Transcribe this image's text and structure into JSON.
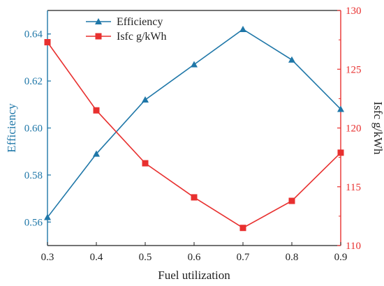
{
  "chart_data": {
    "type": "line",
    "title": "",
    "x": [
      0.3,
      0.4,
      0.5,
      0.6,
      0.7,
      0.8,
      0.9
    ],
    "xlabel": "Fuel utilization",
    "xlim": [
      0.3,
      0.9
    ],
    "xticks": [
      "0.3",
      "0.4",
      "0.5",
      "0.6",
      "0.7",
      "0.8",
      "0.9"
    ],
    "y_left": {
      "label": "Efficiency",
      "lim": [
        0.55,
        0.65
      ],
      "ticks": [
        "0.56",
        "0.58",
        "0.60",
        "0.62",
        "0.64"
      ],
      "color": "#1f77a8"
    },
    "y_right": {
      "label": "Isfc g/kWh",
      "lim": [
        110,
        130
      ],
      "ticks": [
        "110",
        "115",
        "120",
        "125",
        "130"
      ],
      "color": "#e8302f"
    },
    "series": [
      {
        "name": "Efficiency",
        "axis": "left",
        "marker": "triangle",
        "color": "#1f77a8",
        "values": [
          0.562,
          0.589,
          0.612,
          0.627,
          0.642,
          0.629,
          0.608
        ]
      },
      {
        "name": "Isfc g/kWh",
        "axis": "right",
        "marker": "square",
        "color": "#e8302f",
        "values": [
          127.3,
          121.5,
          117.0,
          114.1,
          111.5,
          113.8,
          117.9
        ]
      }
    ],
    "legend": "top-left",
    "grid": false
  }
}
